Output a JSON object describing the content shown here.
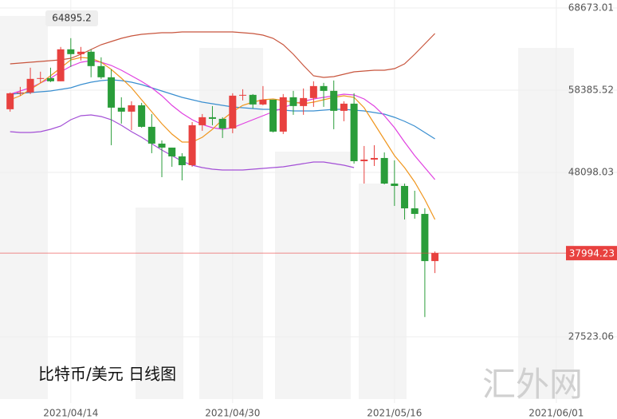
{
  "chart_data": {
    "type": "candlestick",
    "title": "比特币/美元  日线图",
    "watermark": "汇外网",
    "dates": [
      "2021/04/08",
      "2021/04/09",
      "2021/04/10",
      "2021/04/11",
      "2021/04/12",
      "2021/04/13",
      "2021/04/14",
      "2021/04/15",
      "2021/04/16",
      "2021/04/17",
      "2021/04/18",
      "2021/04/19",
      "2021/04/20",
      "2021/04/21",
      "2021/04/22",
      "2021/04/23",
      "2021/04/24",
      "2021/04/25",
      "2021/04/26",
      "2021/04/27",
      "2021/04/28",
      "2021/04/29",
      "2021/04/30",
      "2021/05/01",
      "2021/05/02",
      "2021/05/03",
      "2021/05/04",
      "2021/05/05",
      "2021/05/06",
      "2021/05/07",
      "2021/05/08",
      "2021/05/09",
      "2021/05/10",
      "2021/05/11",
      "2021/05/12",
      "2021/05/13",
      "2021/05/14",
      "2021/05/15",
      "2021/05/16",
      "2021/05/17",
      "2021/05/18",
      "2021/05/19",
      "2021/05/20"
    ],
    "open": [
      56000,
      58000,
      58100,
      59800,
      59900,
      59500,
      63500,
      62900,
      63200,
      61400,
      60000,
      56200,
      55700,
      56500,
      53800,
      51700,
      51200,
      50100,
      49000,
      54000,
      55000,
      54800,
      53600,
      57700,
      57800,
      56600,
      57200,
      53200,
      57500,
      56400,
      57400,
      58900,
      58300,
      55800,
      56700,
      49500,
      49700,
      49900,
      46700,
      46400,
      43600,
      42900,
      37000
    ],
    "high": [
      58100,
      58800,
      61200,
      60700,
      61200,
      63800,
      64895.2,
      63800,
      63500,
      62500,
      61000,
      57500,
      57000,
      56800,
      55400,
      52100,
      51200,
      50500,
      54400,
      55400,
      56400,
      55000,
      58000,
      58500,
      57900,
      58900,
      57200,
      57900,
      58300,
      58600,
      59500,
      59300,
      59600,
      57000,
      58000,
      51400,
      51500,
      50600,
      49600,
      46700,
      45800,
      43600,
      38200
    ],
    "low": [
      55700,
      57700,
      57900,
      59300,
      59400,
      59500,
      61300,
      62100,
      60000,
      59800,
      51500,
      54200,
      53400,
      53700,
      50500,
      47500,
      48800,
      47100,
      48800,
      53300,
      54000,
      52400,
      53000,
      57100,
      56100,
      56500,
      53100,
      52900,
      55300,
      55300,
      56300,
      56300,
      53500,
      54500,
      49200,
      46700,
      48900,
      46600,
      43900,
      42200,
      42300,
      30000,
      35500
    ],
    "close": [
      58000,
      58100,
      59800,
      59900,
      59500,
      63500,
      62900,
      63200,
      61400,
      60000,
      56200,
      55700,
      56500,
      53800,
      51700,
      51200,
      50100,
      49000,
      54000,
      55000,
      54800,
      53600,
      57700,
      57800,
      56600,
      57200,
      53200,
      57500,
      56400,
      57400,
      58900,
      58300,
      55800,
      56700,
      49500,
      49700,
      49900,
      46700,
      46400,
      43600,
      42900,
      37000,
      37994.23
    ],
    "up_color": "#e8413f",
    "down_color": "#2a9d3a",
    "overlays": [
      {
        "color": "#c8553d",
        "values": [
          61682,
          61782,
          61881,
          61981,
          62081,
          62181,
          62381,
          62880,
          63479,
          64079,
          64478,
          64878,
          65177,
          65377,
          65477,
          65577,
          65577,
          65677,
          65677,
          65677,
          65677,
          65677,
          65677,
          65577,
          65477,
          65277,
          64878,
          64079,
          62880,
          61482,
          60183,
          59984,
          60084,
          60383,
          60683,
          60783,
          60883,
          60883,
          61082,
          61682,
          62880,
          64179,
          65477
        ]
      },
      {
        "color": "#3a8fd0",
        "values": [
          57886,
          57986,
          58086,
          58186,
          58286,
          58486,
          58685,
          59085,
          59384,
          59584,
          59684,
          59584,
          59384,
          59085,
          58685,
          58286,
          57886,
          57487,
          57187,
          56887,
          56688,
          56488,
          56288,
          56188,
          56088,
          55988,
          55988,
          55889,
          55789,
          55789,
          55789,
          55889,
          55988,
          55988,
          55889,
          55789,
          55589,
          55389,
          54990,
          54490,
          53891,
          53091,
          52293
        ]
      },
      {
        "color": "#a34fd6",
        "values": [
          53192,
          53092,
          53092,
          53192,
          53491,
          53891,
          54690,
          55189,
          55289,
          55089,
          54690,
          53991,
          53192,
          52493,
          51694,
          50895,
          50195,
          49496,
          48997,
          48697,
          48497,
          48397,
          48397,
          48397,
          48497,
          48597,
          48697,
          48797,
          48997,
          49197,
          49396,
          49396,
          49197,
          48997,
          48697,
          null,
          null,
          null,
          null,
          null,
          null,
          null,
          null
        ]
      },
      {
        "color": "#e040e0",
        "values": [
          57886,
          58286,
          58685,
          59285,
          59884,
          60683,
          61382,
          61881,
          62081,
          61881,
          61482,
          60883,
          60183,
          59484,
          58685,
          57686,
          56488,
          55489,
          54690,
          54091,
          53691,
          53491,
          53691,
          54191,
          54690,
          55189,
          55689,
          56188,
          56688,
          56987,
          57287,
          57487,
          57686,
          57886,
          57786,
          57287,
          56388,
          55189,
          53691,
          51894,
          50195,
          48697,
          47199
        ]
      },
      {
        "color": "#f0961e",
        "values": [
          57187,
          57686,
          58486,
          59285,
          60183,
          61182,
          62181,
          62481,
          62381,
          61881,
          60983,
          59884,
          58685,
          57187,
          55689,
          54190,
          52892,
          51893,
          51893,
          52493,
          53491,
          54690,
          55689,
          56488,
          56887,
          57187,
          57287,
          57087,
          56887,
          56688,
          56887,
          57187,
          57487,
          57686,
          57487,
          56188,
          54190,
          52193,
          50195,
          48697,
          46899,
          44702,
          42205
        ]
      }
    ],
    "xlim": [
      "2021/04/07",
      "2021/06/07"
    ],
    "xticks": [
      "2021/04/14",
      "2021/04/30",
      "2021/05/16",
      "2021/06/01"
    ],
    "ylim": [
      19233,
      69672
    ],
    "yticks": [
      27523.06,
      48098.03,
      58385.52,
      68673.01
    ],
    "grid": true
  }
}
